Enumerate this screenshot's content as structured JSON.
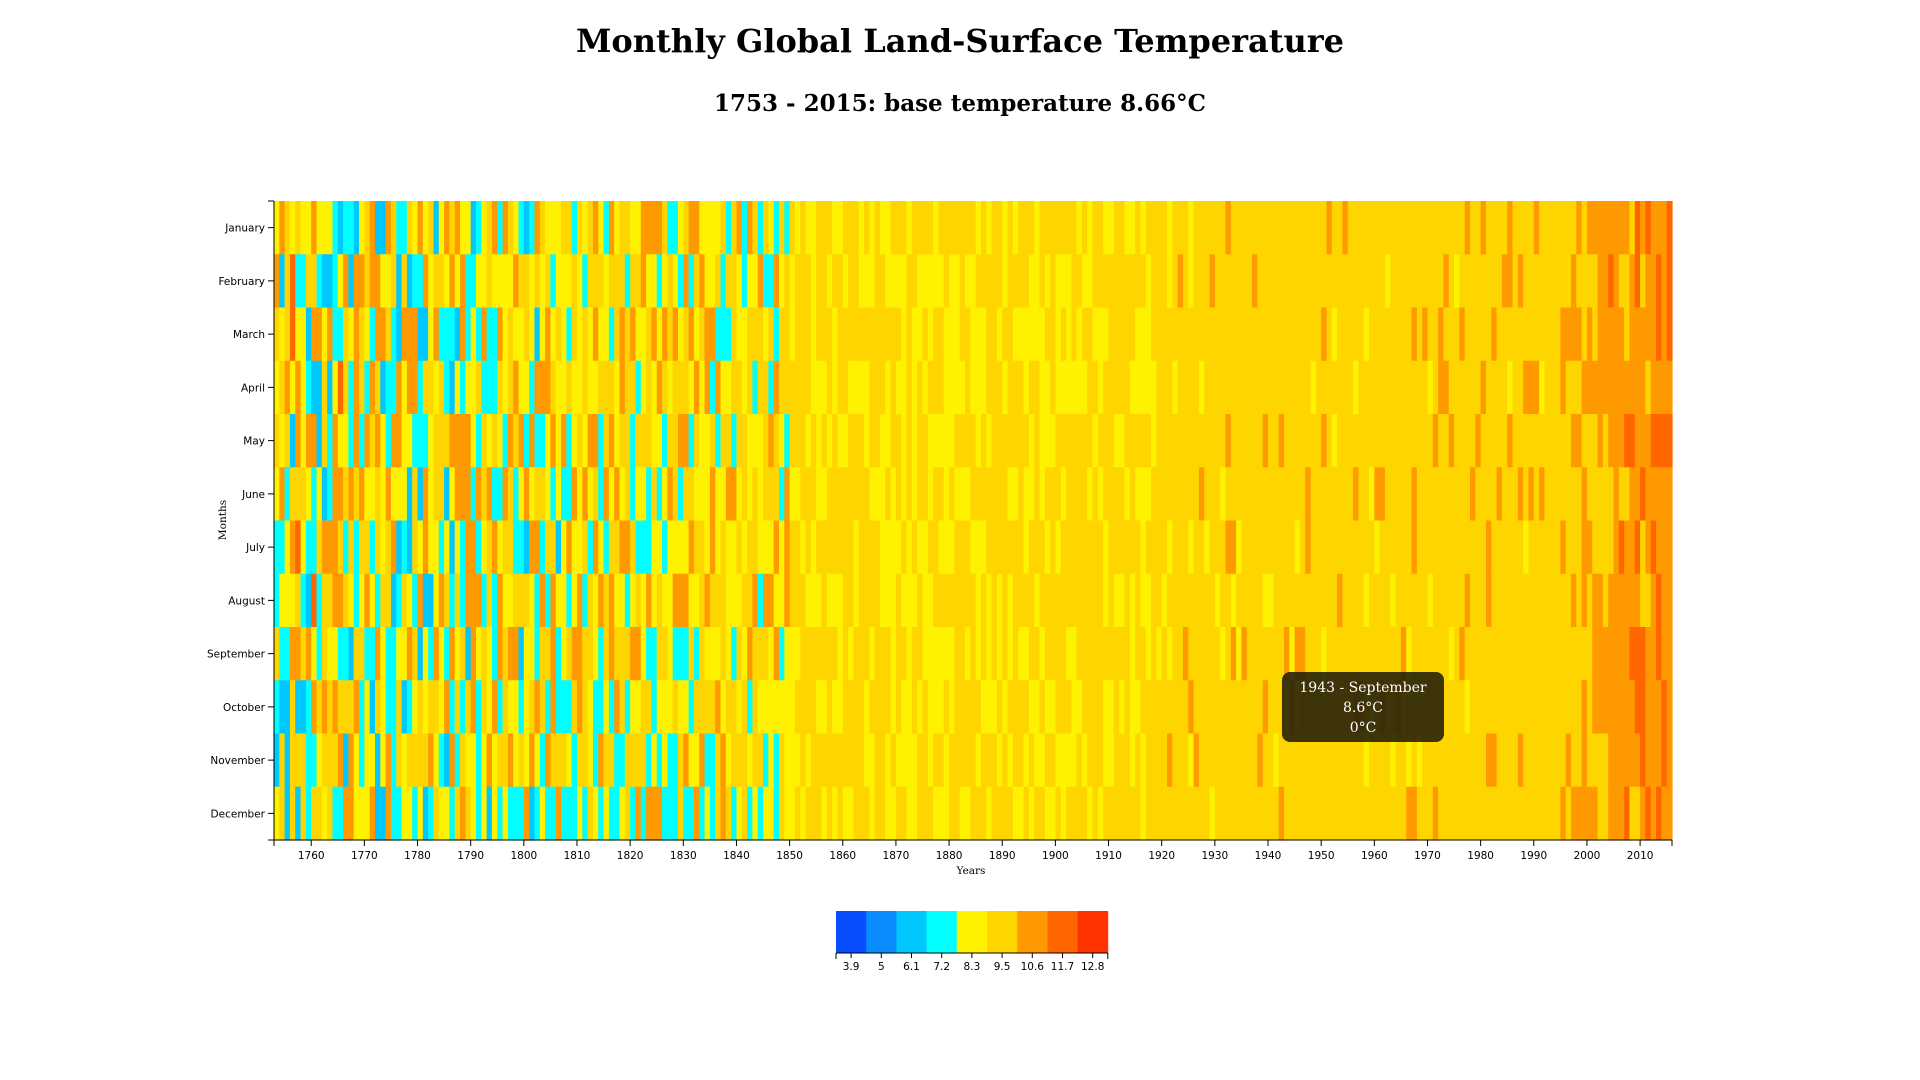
{
  "page": {
    "title": "Monthly Global Land-Surface Temperature",
    "subtitle": "1753 - 2015: base temperature 8.66°C"
  },
  "tooltip": {
    "line1": "1943 - September",
    "line2": "8.6°C",
    "line3": "0°C"
  },
  "chart_data": {
    "type": "heatmap",
    "title": "Monthly Global Land-Surface Temperature",
    "subtitle": "1753 - 2015: base temperature 8.66°C",
    "xlabel": "Years",
    "ylabel": "Months",
    "base_temperature": 8.66,
    "x_range": [
      1753,
      2015
    ],
    "months": [
      "January",
      "February",
      "March",
      "April",
      "May",
      "June",
      "July",
      "August",
      "September",
      "October",
      "November",
      "December"
    ],
    "x_ticks": [
      1760,
      1770,
      1780,
      1790,
      1800,
      1810,
      1820,
      1830,
      1840,
      1850,
      1860,
      1870,
      1880,
      1890,
      1900,
      1910,
      1920,
      1930,
      1940,
      1950,
      1960,
      1970,
      1980,
      1990,
      2000,
      2010
    ],
    "legend": {
      "thresholds": [
        "3.9",
        "5",
        "6.1",
        "7.2",
        "8.3",
        "9.5",
        "10.6",
        "11.7",
        "12.8"
      ],
      "colors": [
        "#0a4dff",
        "#0a8cff",
        "#00c8ff",
        "#00ffff",
        "#fff200",
        "#ffd500",
        "#ff9900",
        "#ff6600",
        "#ff3300"
      ]
    },
    "grid": false,
    "legend_position": "bottom-center"
  }
}
